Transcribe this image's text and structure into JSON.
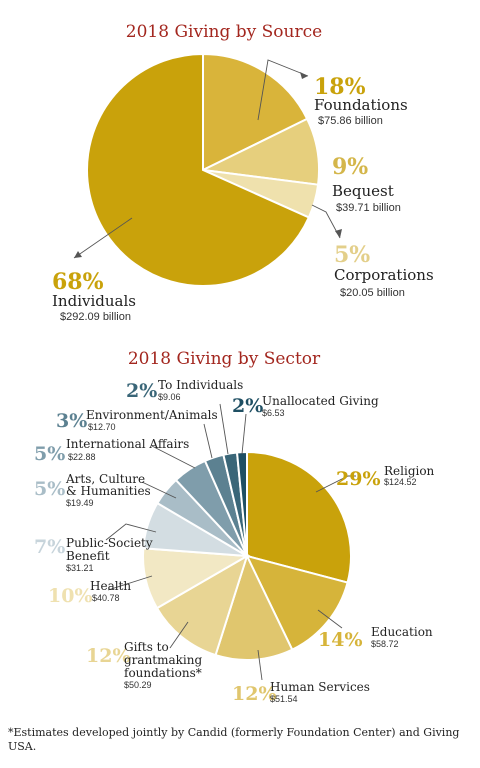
{
  "chart_data": [
    {
      "type": "pie",
      "title": "2018 Giving by Source",
      "unit": "billion",
      "slices": [
        {
          "percent": "18%",
          "label": "Foundations",
          "value_text": "$75.86 billion",
          "value": 75.86,
          "color": "#d9b43a"
        },
        {
          "percent": "9%",
          "label": "Bequest",
          "value_text": "$39.71 billion",
          "value": 39.71,
          "color": "#e6cf7d"
        },
        {
          "percent": "5%",
          "label": "Corporations",
          "value_text": "$20.05 billion",
          "value": 20.05,
          "color": "#efe1ad"
        },
        {
          "percent": "68%",
          "label": "Individuals",
          "value_text": "$292.09 billion",
          "value": 292.09,
          "color": "#c9a20b"
        }
      ]
    },
    {
      "type": "pie",
      "title": "2018 Giving by Sector",
      "slices": [
        {
          "percent": "29%",
          "label": "Religion",
          "value_text": "$124.52",
          "value": 124.52,
          "color": "#c9a20b",
          "pct_color": "#c9a20b"
        },
        {
          "percent": "14%",
          "label": "Education",
          "value_text": "$58.72",
          "value": 58.72,
          "color": "#d6b43a",
          "pct_color": "#d6b43a"
        },
        {
          "percent": "12%",
          "label": "Human Services",
          "value_text": "$51.54",
          "value": 51.54,
          "color": "#e0c66e",
          "pct_color": "#e0c66e"
        },
        {
          "percent": "12%",
          "label": "Gifts to grantmaking foundations*",
          "value_text": "$50.29",
          "value": 50.29,
          "color": "#e8d594",
          "pct_color": "#e8d594"
        },
        {
          "percent": "10%",
          "label": "Health",
          "value_text": "$40.78",
          "value": 40.78,
          "color": "#f2e8c4",
          "pct_color": "#efe1b0"
        },
        {
          "percent": "7%",
          "label": "Public-Society Benefit",
          "value_text": "$31.21",
          "value": 31.21,
          "color": "#d3dde2",
          "pct_color": "#c7d4db"
        },
        {
          "percent": "5%",
          "label": "Arts, Culture & Humanities",
          "value_text": "$19.49",
          "value": 19.49,
          "color": "#a9bdc7",
          "pct_color": "#a9bdc7"
        },
        {
          "percent": "5%",
          "label": "International Affairs",
          "value_text": "$22.88",
          "value": 22.88,
          "color": "#7f9dab",
          "pct_color": "#7f9dab"
        },
        {
          "percent": "3%",
          "label": "Environment/Animals",
          "value_text": "$12.70",
          "value": 12.7,
          "color": "#5c8191",
          "pct_color": "#5c8191"
        },
        {
          "percent": "2%",
          "label": "To Individuals",
          "value_text": "$9.06",
          "value": 9.06,
          "color": "#3a6678",
          "pct_color": "#3a6678"
        },
        {
          "percent": "2%",
          "label": "Unallocated Giving",
          "value_text": "$6.53",
          "value": 6.53,
          "color": "#1f4f63",
          "pct_color": "#1f4f63"
        }
      ]
    }
  ],
  "footnote": "*Estimates developed jointly by Candid (formerly Foundation Center) and Giving USA."
}
